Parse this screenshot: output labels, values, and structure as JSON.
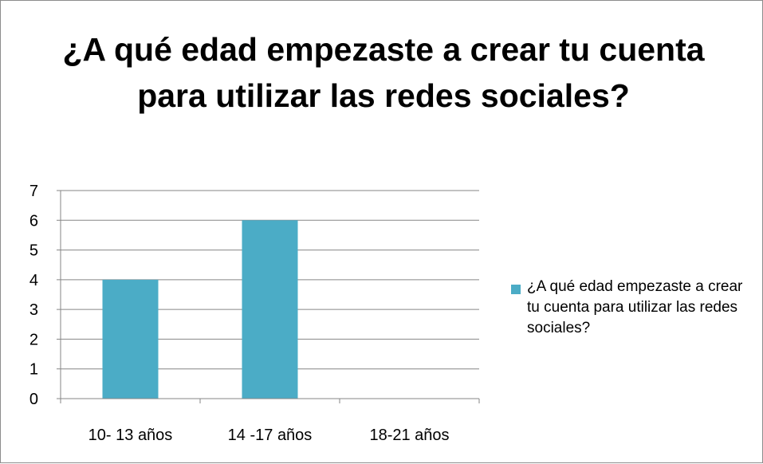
{
  "chart_data": {
    "type": "bar",
    "title": "¿A qué edad empezaste a crear tu cuenta para utilizar las redes sociales?",
    "categories": [
      "10- 13 años",
      "14 -17 años",
      "18-21 años"
    ],
    "series": [
      {
        "name": "¿A qué edad empezaste a crear tu cuenta para utilizar las redes sociales?",
        "values": [
          4,
          6,
          0
        ],
        "color": "#4bacc6"
      }
    ],
    "ylim": [
      0,
      7
    ],
    "yticks": [
      "0",
      "1",
      "2",
      "3",
      "4",
      "5",
      "6",
      "7"
    ],
    "grid": true,
    "legend_position": "right"
  }
}
